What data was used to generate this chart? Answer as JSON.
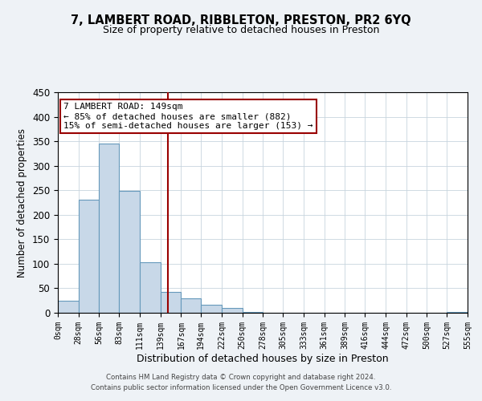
{
  "title": "7, LAMBERT ROAD, RIBBLETON, PRESTON, PR2 6YQ",
  "subtitle": "Size of property relative to detached houses in Preston",
  "xlabel": "Distribution of detached houses by size in Preston",
  "ylabel": "Number of detached properties",
  "bar_edges": [
    0,
    28,
    56,
    83,
    111,
    139,
    167,
    194,
    222,
    250,
    278,
    305,
    333,
    361,
    389,
    416,
    444,
    472,
    500,
    527,
    555
  ],
  "bar_heights": [
    25,
    230,
    345,
    248,
    103,
    42,
    30,
    16,
    10,
    2,
    0,
    0,
    0,
    0,
    0,
    0,
    0,
    0,
    0,
    2
  ],
  "bar_color": "#c8d8e8",
  "bar_edge_color": "#6699bb",
  "vline_x": 149,
  "vline_color": "#990000",
  "ylim": [
    0,
    450
  ],
  "xlim": [
    0,
    555
  ],
  "tick_labels": [
    "0sqm",
    "28sqm",
    "56sqm",
    "83sqm",
    "111sqm",
    "139sqm",
    "167sqm",
    "194sqm",
    "222sqm",
    "250sqm",
    "278sqm",
    "305sqm",
    "333sqm",
    "361sqm",
    "389sqm",
    "416sqm",
    "444sqm",
    "472sqm",
    "500sqm",
    "527sqm",
    "555sqm"
  ],
  "annotation_title": "7 LAMBERT ROAD: 149sqm",
  "annotation_line1": "← 85% of detached houses are smaller (882)",
  "annotation_line2": "15% of semi-detached houses are larger (153) →",
  "annotation_box_color": "#ffffff",
  "annotation_box_edge_color": "#990000",
  "footer1": "Contains HM Land Registry data © Crown copyright and database right 2024.",
  "footer2": "Contains public sector information licensed under the Open Government Licence v3.0.",
  "bg_color": "#eef2f6",
  "plot_bg_color": "#ffffff",
  "grid_color": "#c8d4de"
}
